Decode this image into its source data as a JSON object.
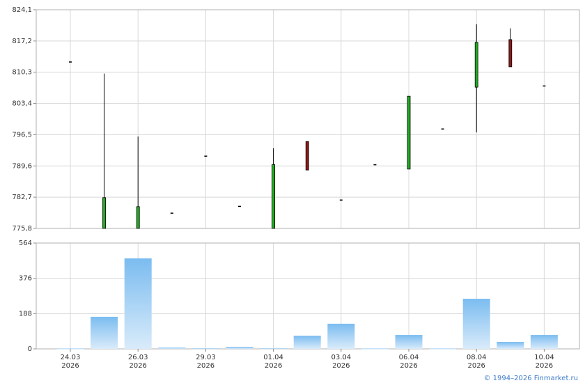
{
  "chart_data": [
    {
      "type": "candlestick",
      "open": [
        812.6,
        775.8,
        775.8,
        779.2,
        791.8,
        780.7,
        775.8,
        795.0,
        782.1,
        789.9,
        788.9,
        797.8,
        807.0,
        817.5,
        807.3
      ],
      "high": [
        812.6,
        810.0,
        796.1,
        779.2,
        791.8,
        780.7,
        793.5,
        795.0,
        782.1,
        789.9,
        805.0,
        797.8,
        820.9,
        820.0,
        807.3
      ],
      "low": [
        812.6,
        775.8,
        775.8,
        779.2,
        791.8,
        780.7,
        775.8,
        788.7,
        782.1,
        789.9,
        788.9,
        797.8,
        797.0,
        811.5,
        807.3
      ],
      "close": [
        812.6,
        782.6,
        780.6,
        779.2,
        791.8,
        780.7,
        789.9,
        788.7,
        782.1,
        789.9,
        805.0,
        797.8,
        816.9,
        811.5,
        807.3
      ],
      "up_color": "#22aa22",
      "down_color": "#8b1a1a",
      "ylim": [
        775.8,
        824.1
      ],
      "yticks": [
        {
          "value": 775.8,
          "label": "775,8"
        },
        {
          "value": 782.7,
          "label": "782,7"
        },
        {
          "value": 789.6,
          "label": "789,6"
        },
        {
          "value": 796.5,
          "label": "796,5"
        },
        {
          "value": 803.4,
          "label": "803,4"
        },
        {
          "value": 810.3,
          "label": "810,3"
        },
        {
          "value": 817.2,
          "label": "817,2"
        },
        {
          "value": 824.1,
          "label": "824,1"
        }
      ],
      "grid": true
    },
    {
      "type": "bar",
      "categories": [
        "24.03",
        null,
        "26.03",
        null,
        "29.03",
        null,
        "01.04",
        null,
        "03.04",
        null,
        "06.04",
        null,
        "08.04",
        null,
        "10.04"
      ],
      "x_sublabel": "2026",
      "values": [
        2,
        171,
        482,
        7,
        3,
        11,
        3,
        70,
        134,
        2,
        74,
        2,
        267,
        37,
        74
      ],
      "color": "#7bbcf0",
      "ylim": [
        0,
        564
      ],
      "yticks": [
        0,
        188,
        376,
        564
      ],
      "grid": true
    }
  ],
  "footer": "© 1994–2026 Finmarket.ru"
}
